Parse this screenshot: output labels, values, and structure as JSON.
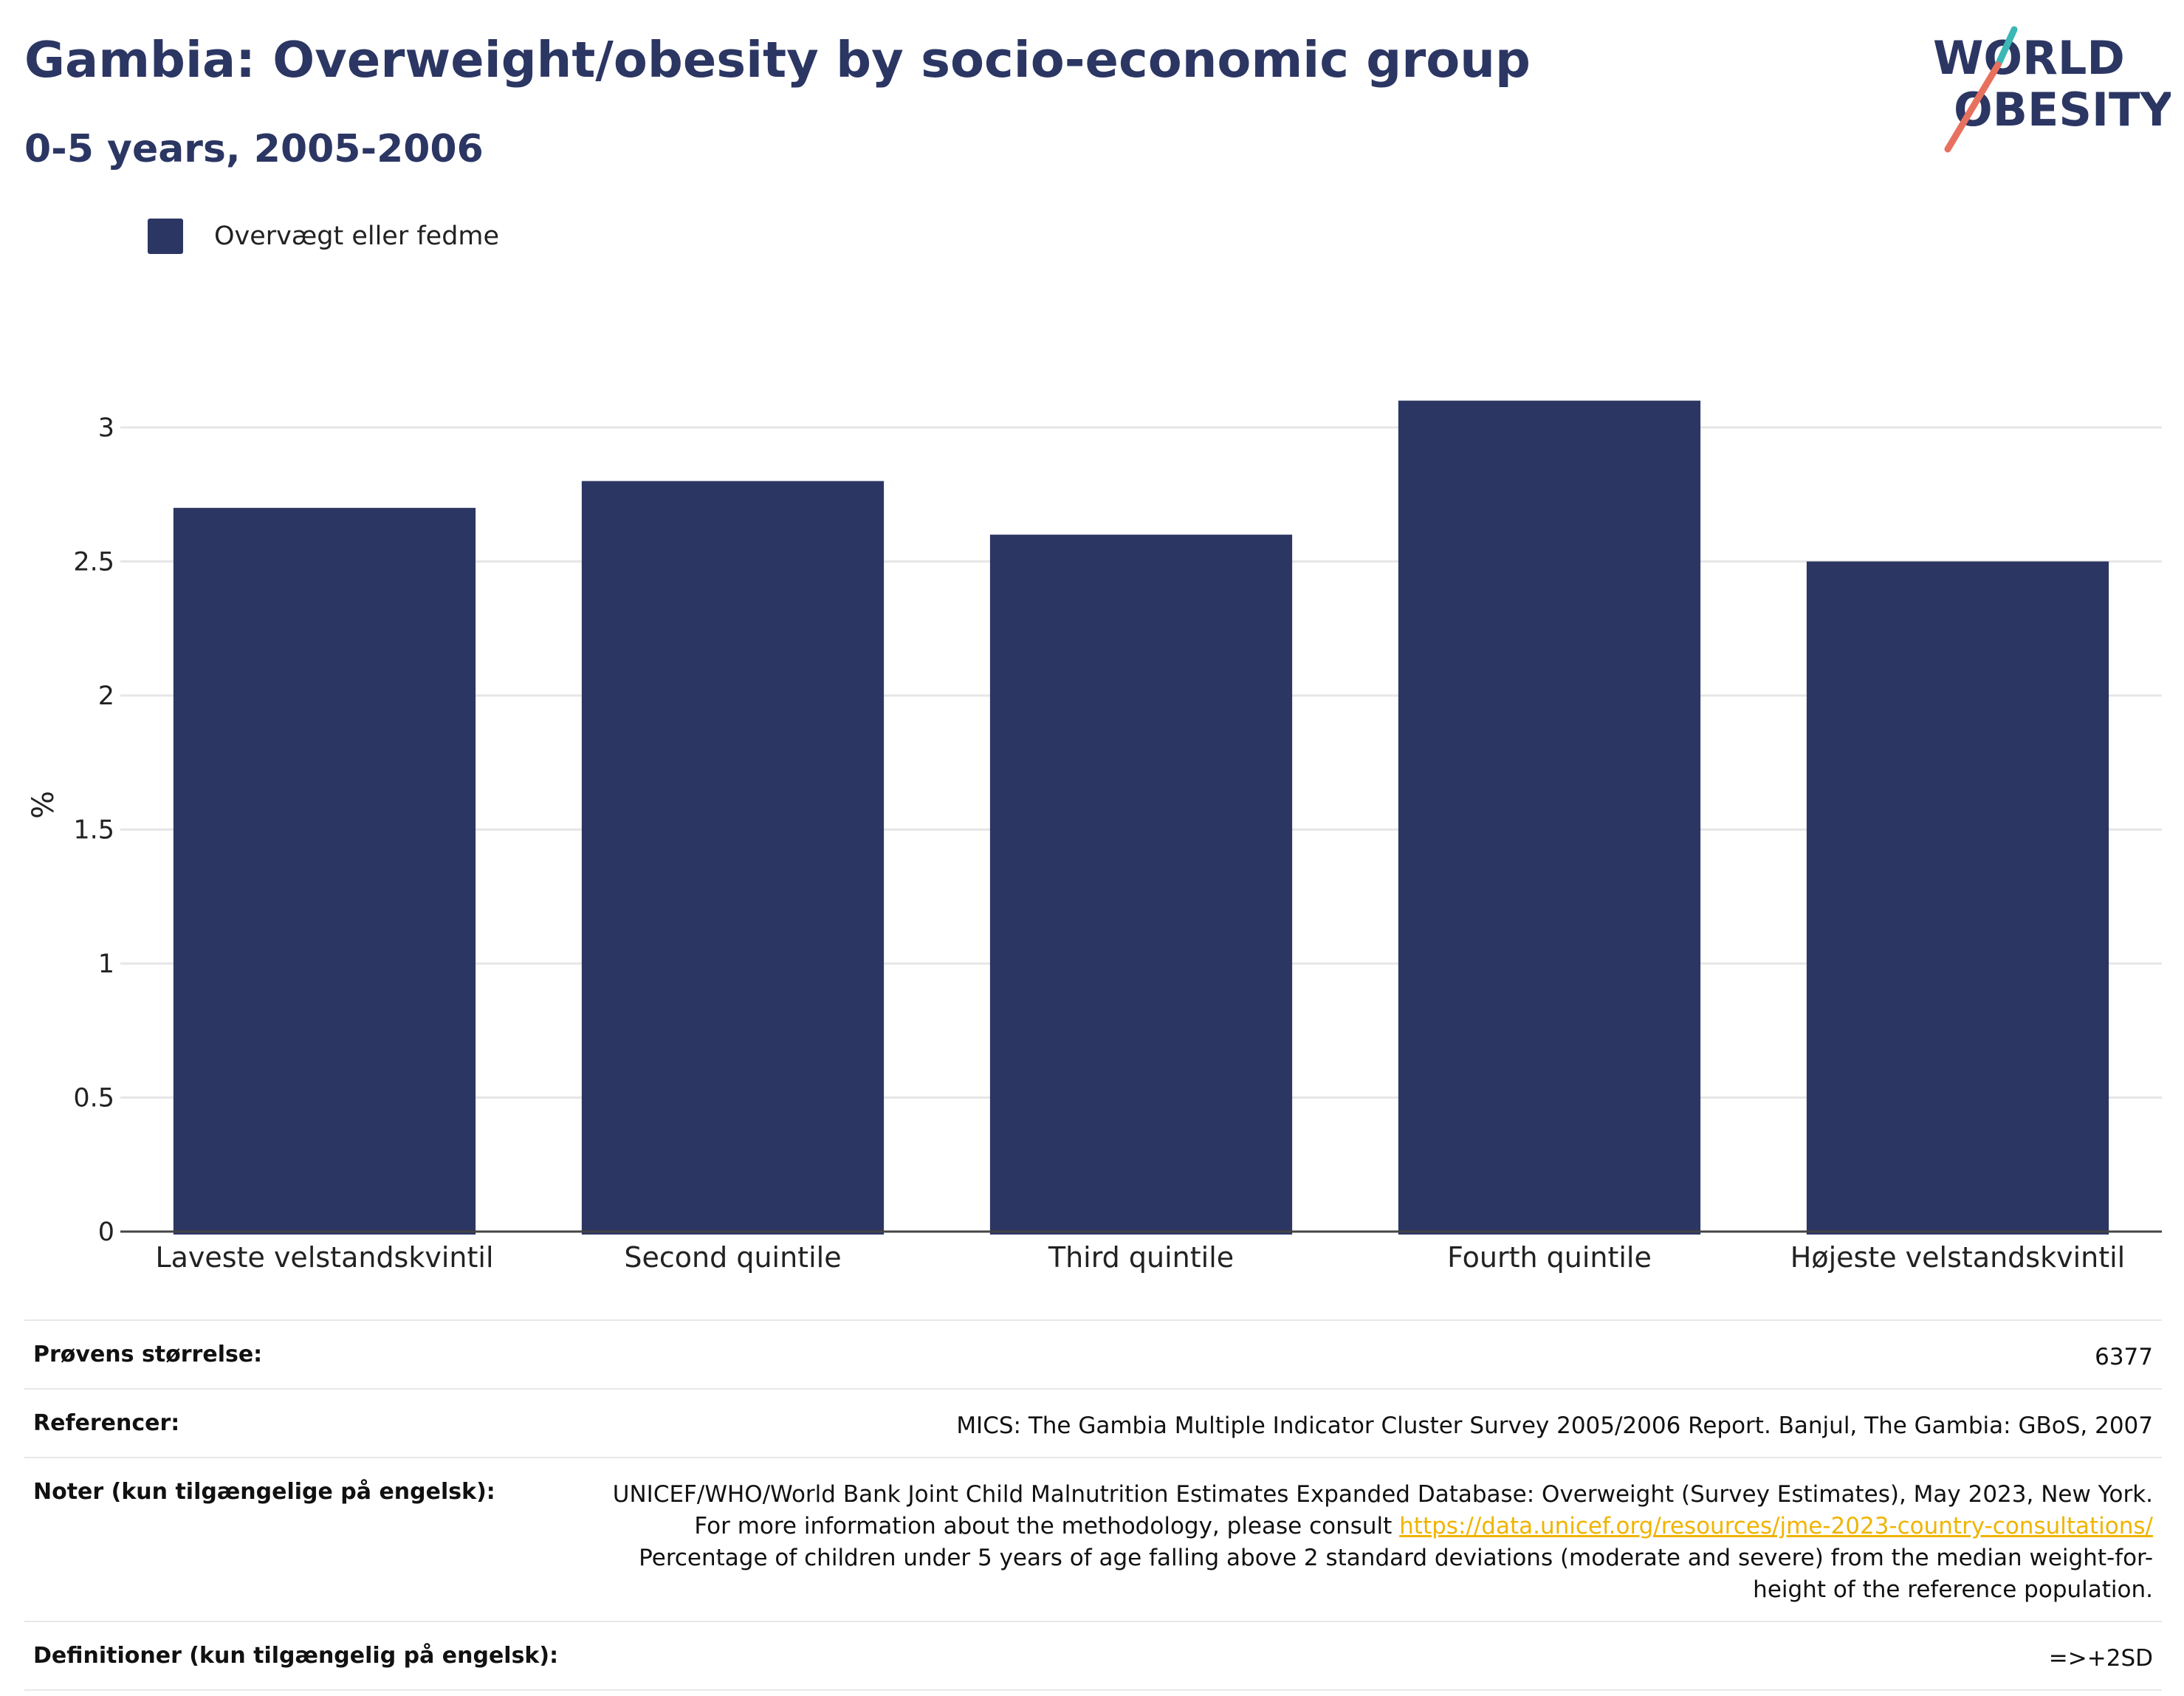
{
  "header": {
    "title": "Gambia: Overweight/obesity by socio-economic group",
    "subtitle": "0-5 years, 2005-2006"
  },
  "logo": {
    "line1": "WORLD",
    "line2": "OBESITY",
    "primary_color": "#2b3663",
    "accent_teal": "#3bb8b5",
    "accent_coral": "#e8705f"
  },
  "legend": {
    "label": "Overvægt eller fedme",
    "color": "#2b3663"
  },
  "chart_data": {
    "type": "bar",
    "categories": [
      "Laveste velstandskvintil",
      "Second quintile",
      "Third quintile",
      "Fourth quintile",
      "Højeste velstandskvintil"
    ],
    "series": [
      {
        "name": "Overvægt eller fedme",
        "values": [
          2.7,
          2.8,
          2.6,
          3.1,
          2.5
        ],
        "color": "#2b3663"
      }
    ],
    "ylabel": "%",
    "xlabel": "",
    "ylim": [
      0,
      3.3
    ],
    "yticks": [
      0,
      0.5,
      1,
      1.5,
      2,
      2.5,
      3
    ],
    "ytick_labels": [
      "0",
      "0.5",
      "1",
      "1.5",
      "2",
      "2.5",
      "3"
    ],
    "grid": true,
    "legend_position": "top-left"
  },
  "info": {
    "sample_size_label": "Prøvens størrelse:",
    "sample_size_value": "6377",
    "references_label": "Referencer:",
    "references_value": "MICS: The Gambia Multiple Indicator Cluster Survey 2005/2006 Report. Banjul, The Gambia: GBoS, 2007",
    "notes_label": "Noter (kun tilgængelige på engelsk):",
    "notes_text_1": "UNICEF/WHO/World Bank Joint Child Malnutrition Estimates Expanded Database: Overweight (Survey Estimates), May 2023, New York. For more information about the methodology, please consult ",
    "notes_link": "https://data.unicef.org/resources/jme-2023-country-consultations/",
    "notes_text_2": " Percentage of children under 5 years of age falling above 2 standard deviations (moderate and severe) from the median weight-for-height of the reference population.",
    "definitions_label": "Definitioner (kun tilgængelig på engelsk):",
    "definitions_value": "=>+2SD"
  }
}
